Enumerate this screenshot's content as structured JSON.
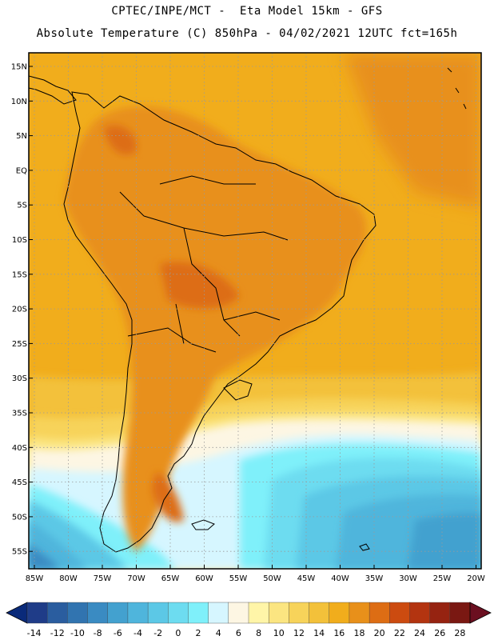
{
  "header": {
    "line1": "CPTEC/INPE/MCT -  Eta Model 15km - GFS",
    "line2": "Absolute Temperature (C) 850hPa - 04/02/2021 12UTC fct=165h"
  },
  "map": {
    "lat_labels": [
      "15N",
      "10N",
      "5N",
      "EQ",
      "5S",
      "10S",
      "15S",
      "20S",
      "25S",
      "30S",
      "35S",
      "40S",
      "45S",
      "50S",
      "55S"
    ],
    "lon_labels": [
      "85W",
      "80W",
      "75W",
      "70W",
      "65W",
      "60W",
      "55W",
      "50W",
      "45W",
      "40W",
      "35W",
      "30W",
      "25W",
      "20W"
    ],
    "gridlines": "dotted",
    "continent": "South America"
  },
  "colorbar": {
    "tick_labels": [
      "-14",
      "-12",
      "-10",
      "-8",
      "-6",
      "-4",
      "-2",
      "0",
      "2",
      "4",
      "6",
      "8",
      "10",
      "12",
      "14",
      "16",
      "18",
      "20",
      "22",
      "24",
      "26",
      "28"
    ],
    "colors": [
      "#1f3c88",
      "#2a5d9f",
      "#3174b0",
      "#3a8bc2",
      "#43a1cf",
      "#4fb5dc",
      "#5cc8e6",
      "#6ddcf0",
      "#7ff0fa",
      "#d6f6ff",
      "#fdf6e3",
      "#fff5a8",
      "#fbe581",
      "#f7d35a",
      "#f3c13a",
      "#f1ad1c",
      "#e8901a",
      "#dd6d14",
      "#cc4b10",
      "#b33410",
      "#962311",
      "#7a1812"
    ],
    "under_color": "#0a2a7a",
    "over_color": "#6b0f20"
  }
}
